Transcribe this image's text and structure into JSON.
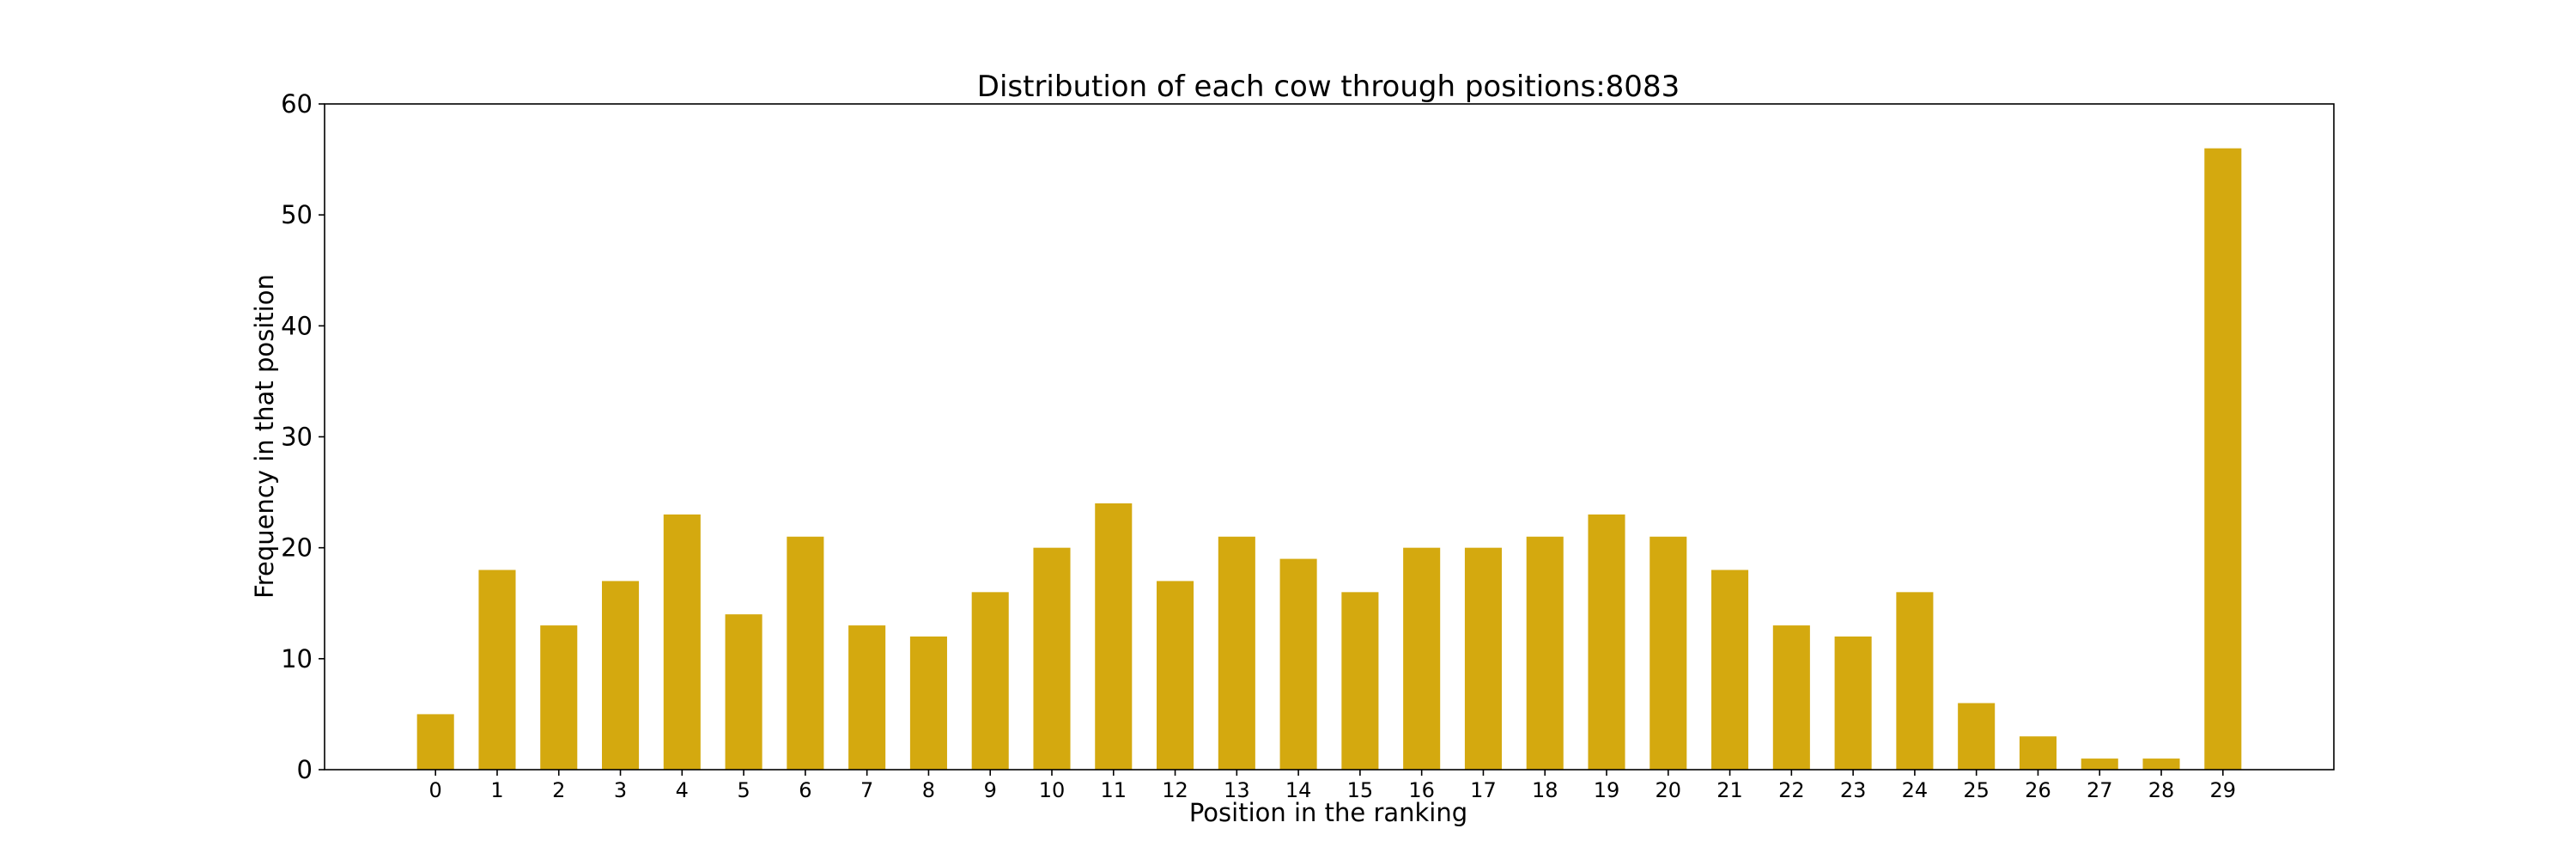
{
  "chart_data": {
    "type": "bar",
    "title": "Distribution of each cow through positions:8083",
    "xlabel": "Position in the ranking",
    "ylabel": "Frequency in that position",
    "categories": [
      "0",
      "1",
      "2",
      "3",
      "4",
      "5",
      "6",
      "7",
      "8",
      "9",
      "10",
      "11",
      "12",
      "13",
      "14",
      "15",
      "16",
      "17",
      "18",
      "19",
      "20",
      "21",
      "22",
      "23",
      "24",
      "25",
      "26",
      "27",
      "28",
      "29"
    ],
    "values": [
      5,
      18,
      13,
      17,
      23,
      14,
      21,
      13,
      12,
      16,
      20,
      24,
      17,
      21,
      19,
      16,
      20,
      20,
      21,
      23,
      21,
      18,
      13,
      12,
      16,
      6,
      3,
      1,
      1,
      56
    ],
    "ylim": [
      0,
      60
    ],
    "yticks": [
      0,
      10,
      20,
      30,
      40,
      50,
      60
    ],
    "xlim": [
      -1.8,
      30.8
    ],
    "bar_color": "#d4a90f",
    "grid": false,
    "legend": "none"
  }
}
